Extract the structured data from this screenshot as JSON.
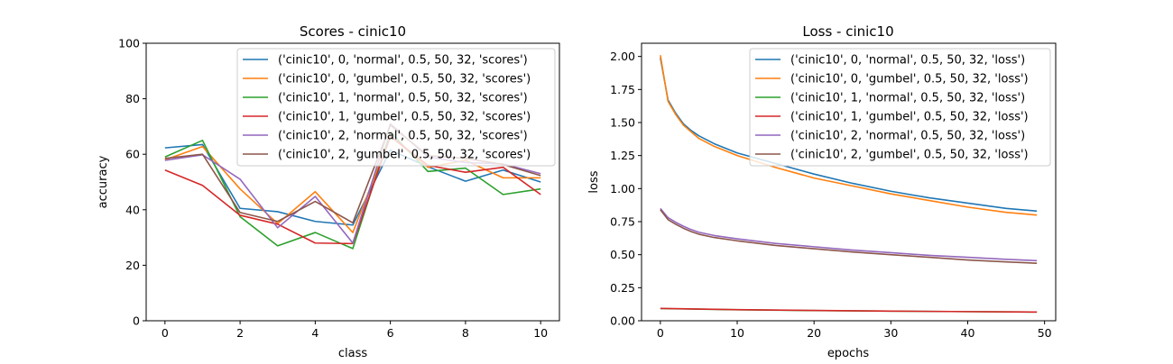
{
  "chart_data": [
    {
      "type": "line",
      "title": "Scores - cinic10",
      "xlabel": "class",
      "ylabel": "accuracy",
      "xlim": [
        -0.5,
        10.5
      ],
      "ylim": [
        0,
        100
      ],
      "xticks": [
        0,
        2,
        4,
        6,
        8,
        10
      ],
      "yticks": [
        0,
        20,
        40,
        60,
        80,
        100
      ],
      "x": [
        0,
        1,
        2,
        3,
        4,
        5,
        6,
        7,
        8,
        9,
        10
      ],
      "grid": false,
      "legend": "top-right",
      "series": [
        {
          "name": "('cinic10', 0, 'normal', 0.5, 50, 32, 'scores')",
          "color": "#1f77b4",
          "values": [
            62.3,
            63.5,
            40.5,
            39.3,
            35.8,
            34.5,
            61.5,
            55.5,
            50.3,
            54.3,
            50.0
          ]
        },
        {
          "name": "('cinic10', 0, 'gumbel', 0.5, 50, 32, 'scores')",
          "color": "#ff7f0e",
          "values": [
            58.0,
            62.8,
            47.5,
            35.0,
            46.5,
            31.8,
            66.5,
            55.3,
            57.8,
            51.5,
            51.5
          ]
        },
        {
          "name": "('cinic10', 1, 'normal', 0.5, 50, 32, 'scores')",
          "color": "#2ca02c",
          "values": [
            59.0,
            65.0,
            37.5,
            27.0,
            31.8,
            26.0,
            68.0,
            53.8,
            55.0,
            45.5,
            47.5
          ]
        },
        {
          "name": "('cinic10', 1, 'gumbel', 0.5, 50, 32, 'scores')",
          "color": "#d62728",
          "values": [
            54.3,
            48.8,
            38.0,
            34.8,
            28.0,
            27.8,
            66.5,
            56.0,
            53.5,
            55.3,
            45.5
          ]
        },
        {
          "name": "('cinic10', 2, 'normal', 0.5, 50, 32, 'scores')",
          "color": "#9467bd",
          "values": [
            57.8,
            59.8,
            51.0,
            33.5,
            44.8,
            28.0,
            71.0,
            59.0,
            57.0,
            56.5,
            53.0
          ]
        },
        {
          "name": "('cinic10', 2, 'gumbel', 0.5, 50, 32, 'scores')",
          "color": "#8c564b",
          "values": [
            58.5,
            60.0,
            39.0,
            35.8,
            43.0,
            35.3,
            70.5,
            59.5,
            58.5,
            56.3,
            52.3
          ]
        }
      ]
    },
    {
      "type": "line",
      "title": "Loss - cinic10",
      "xlabel": "epochs",
      "ylabel": "loss",
      "xlim": [
        -2.45,
        51.45
      ],
      "ylim": [
        -0.0,
        2.1
      ],
      "xticks": [
        0,
        10,
        20,
        30,
        40,
        50
      ],
      "yticks": [
        "0.00",
        "0.25",
        "0.50",
        "0.75",
        "1.00",
        "1.25",
        "1.50",
        "1.75",
        "2.00"
      ],
      "grid": false,
      "legend": "top-right",
      "series": [
        {
          "name": "('cinic10', 0, 'normal', 0.5, 50, 32, 'loss')",
          "color": "#1f77b4",
          "x": [
            0,
            1,
            2,
            3,
            4,
            5,
            7,
            10,
            15,
            20,
            25,
            30,
            35,
            40,
            45,
            49
          ],
          "values": [
            1.99,
            1.67,
            1.57,
            1.49,
            1.44,
            1.4,
            1.34,
            1.27,
            1.19,
            1.11,
            1.04,
            0.98,
            0.93,
            0.89,
            0.85,
            0.83
          ]
        },
        {
          "name": "('cinic10', 0, 'gumbel', 0.5, 50, 32, 'loss')",
          "color": "#ff7f0e",
          "x": [
            0,
            1,
            2,
            3,
            4,
            5,
            7,
            10,
            15,
            20,
            25,
            30,
            35,
            40,
            45,
            49
          ],
          "values": [
            2.01,
            1.66,
            1.56,
            1.48,
            1.43,
            1.38,
            1.32,
            1.25,
            1.16,
            1.08,
            1.02,
            0.96,
            0.91,
            0.86,
            0.82,
            0.8
          ]
        },
        {
          "name": "('cinic10', 1, 'normal', 0.5, 50, 32, 'loss')",
          "color": "#2ca02c",
          "x": [
            0,
            10,
            20,
            30,
            40,
            49
          ],
          "values": [
            0.092,
            0.083,
            0.077,
            0.073,
            0.069,
            0.066
          ]
        },
        {
          "name": "('cinic10', 1, 'gumbel', 0.5, 50, 32, 'loss')",
          "color": "#d62728",
          "x": [
            0,
            10,
            20,
            30,
            40,
            49
          ],
          "values": [
            0.093,
            0.084,
            0.078,
            0.073,
            0.069,
            0.066
          ]
        },
        {
          "name": "('cinic10', 2, 'normal', 0.5, 50, 32, 'loss')",
          "color": "#9467bd",
          "x": [
            0,
            1,
            2,
            3,
            4,
            5,
            7,
            10,
            15,
            20,
            25,
            30,
            35,
            40,
            45,
            49
          ],
          "values": [
            0.85,
            0.78,
            0.745,
            0.715,
            0.69,
            0.67,
            0.645,
            0.62,
            0.585,
            0.56,
            0.535,
            0.515,
            0.495,
            0.48,
            0.465,
            0.455
          ]
        },
        {
          "name": "('cinic10', 2, 'gumbel', 0.5, 50, 32, 'loss')",
          "color": "#8c564b",
          "x": [
            0,
            1,
            2,
            3,
            4,
            5,
            7,
            10,
            15,
            20,
            25,
            30,
            35,
            40,
            45,
            49
          ],
          "values": [
            0.84,
            0.765,
            0.73,
            0.7,
            0.675,
            0.655,
            0.63,
            0.605,
            0.57,
            0.545,
            0.52,
            0.5,
            0.48,
            0.46,
            0.445,
            0.435
          ]
        }
      ]
    }
  ]
}
